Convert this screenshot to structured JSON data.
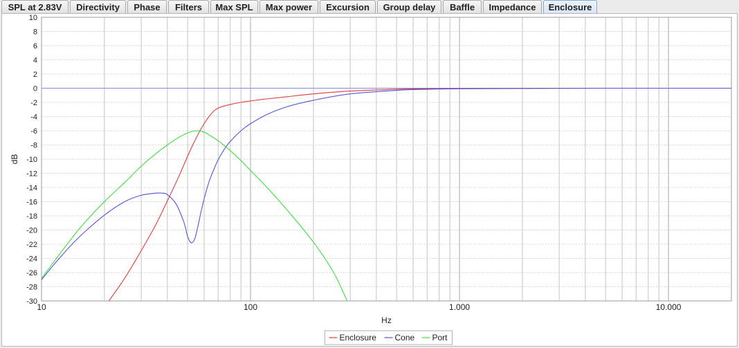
{
  "tabs": [
    {
      "label": "SPL at 2.83V",
      "active": false
    },
    {
      "label": "Directivity",
      "active": false
    },
    {
      "label": "Phase",
      "active": false
    },
    {
      "label": "Filters",
      "active": false
    },
    {
      "label": "Max SPL",
      "active": false
    },
    {
      "label": "Max power",
      "active": false
    },
    {
      "label": "Excursion",
      "active": false
    },
    {
      "label": "Group delay",
      "active": false
    },
    {
      "label": "Baffle",
      "active": false
    },
    {
      "label": "Impedance",
      "active": false
    },
    {
      "label": "Enclosure",
      "active": true
    }
  ],
  "chart_data": {
    "type": "line",
    "xlabel": "Hz",
    "ylabel": "dB",
    "xscale": "log",
    "xlim": [
      10,
      20000
    ],
    "ylim": [
      -30,
      10
    ],
    "x_ticks": [
      10,
      100,
      1000,
      10000
    ],
    "x_tick_labels": [
      "10",
      "100",
      "1.000",
      "10.000"
    ],
    "y_ticks": [
      10,
      8,
      6,
      4,
      2,
      0,
      -2,
      -4,
      -6,
      -8,
      -10,
      -12,
      -14,
      -16,
      -18,
      -20,
      -22,
      -24,
      -26,
      -28,
      -30
    ],
    "y_tick_labels": [
      "10",
      "8",
      "6",
      "4",
      "2",
      "0",
      "-2",
      "-4",
      "-6",
      "-8",
      "-10",
      "-12",
      "-14",
      "-16",
      "-18",
      "-20",
      "-22",
      "-24",
      "-26",
      "-28",
      "-30"
    ],
    "grid": true,
    "legend_position": "bottom-center",
    "series": [
      {
        "name": "Enclosure",
        "color": "#e03c3c",
        "x": [
          21,
          25,
          30,
          35,
          40,
          45,
          50,
          55,
          60,
          65,
          70,
          80,
          90,
          100,
          120,
          150,
          200,
          300,
          500,
          700,
          1000,
          2000,
          5000,
          10000,
          20000
        ],
        "y": [
          -30,
          -26.8,
          -22.9,
          -19.4,
          -15.9,
          -12.7,
          -9.6,
          -7.0,
          -5.0,
          -3.6,
          -2.8,
          -2.3,
          -2.0,
          -1.8,
          -1.5,
          -1.2,
          -0.8,
          -0.4,
          -0.15,
          -0.08,
          -0.05,
          -0.02,
          0,
          0,
          0
        ]
      },
      {
        "name": "Cone",
        "color": "#5454d8",
        "x": [
          10,
          12,
          15,
          20,
          25,
          30,
          35,
          38,
          40,
          44,
          48,
          50,
          52,
          54,
          56,
          58,
          60,
          63,
          66,
          70,
          75,
          80,
          90,
          100,
          120,
          150,
          200,
          300,
          500,
          700,
          1000,
          2000,
          5000,
          10000,
          20000
        ],
        "y": [
          -27,
          -24.2,
          -21.1,
          -17.9,
          -16.0,
          -15.1,
          -14.8,
          -14.8,
          -15.0,
          -16.3,
          -18.9,
          -20.9,
          -21.8,
          -21.3,
          -19.5,
          -17.4,
          -15.6,
          -13.4,
          -11.8,
          -10.1,
          -8.6,
          -7.5,
          -6.0,
          -5.0,
          -3.7,
          -2.6,
          -1.7,
          -0.8,
          -0.3,
          -0.15,
          -0.08,
          -0.03,
          0,
          0,
          0
        ]
      },
      {
        "name": "Port",
        "color": "#3ce03c",
        "x": [
          10,
          15,
          20,
          25,
          30,
          35,
          40,
          45,
          50,
          55,
          60,
          65,
          70,
          80,
          90,
          100,
          120,
          150,
          200,
          250,
          290
        ],
        "y": [
          -26.8,
          -20.0,
          -16.0,
          -13.3,
          -11.0,
          -9.3,
          -8.0,
          -7.0,
          -6.3,
          -6.0,
          -6.2,
          -6.8,
          -7.4,
          -8.8,
          -10.2,
          -11.6,
          -14.0,
          -17.2,
          -21.7,
          -26.0,
          -30.0
        ]
      }
    ]
  }
}
